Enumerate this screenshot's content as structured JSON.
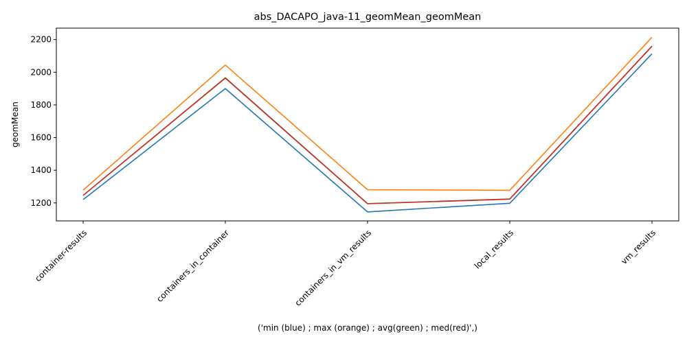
{
  "chart_data": {
    "type": "line",
    "title": "abs_DACAPO_java-11_geomMean_geomMean",
    "xlabel": "('min (blue) ; max (orange) ; avg(green) ; med(red)',)",
    "ylabel": "geomMean",
    "categories": [
      "container-results",
      "containers_in_container",
      "containers_in_vm_results",
      "local_results",
      "vm_results"
    ],
    "ylim": [
      1090,
      2270
    ],
    "yticks": [
      1200,
      1400,
      1600,
      1800,
      2000,
      2200
    ],
    "grid": false,
    "legend": "none",
    "series": [
      {
        "color": "#1f77b4",
        "values": [
          1220,
          1900,
          1145,
          1198,
          2113
        ]
      },
      {
        "color": "#ff7f0e",
        "values": [
          1278,
          2044,
          1281,
          1277,
          2214
        ]
      },
      {
        "color": "#2ca02c",
        "values": [
          1246,
          1966,
          1196,
          1224,
          2160
        ]
      },
      {
        "color": "#d62728",
        "values": [
          1246,
          1964,
          1195,
          1223,
          2159
        ]
      }
    ]
  }
}
